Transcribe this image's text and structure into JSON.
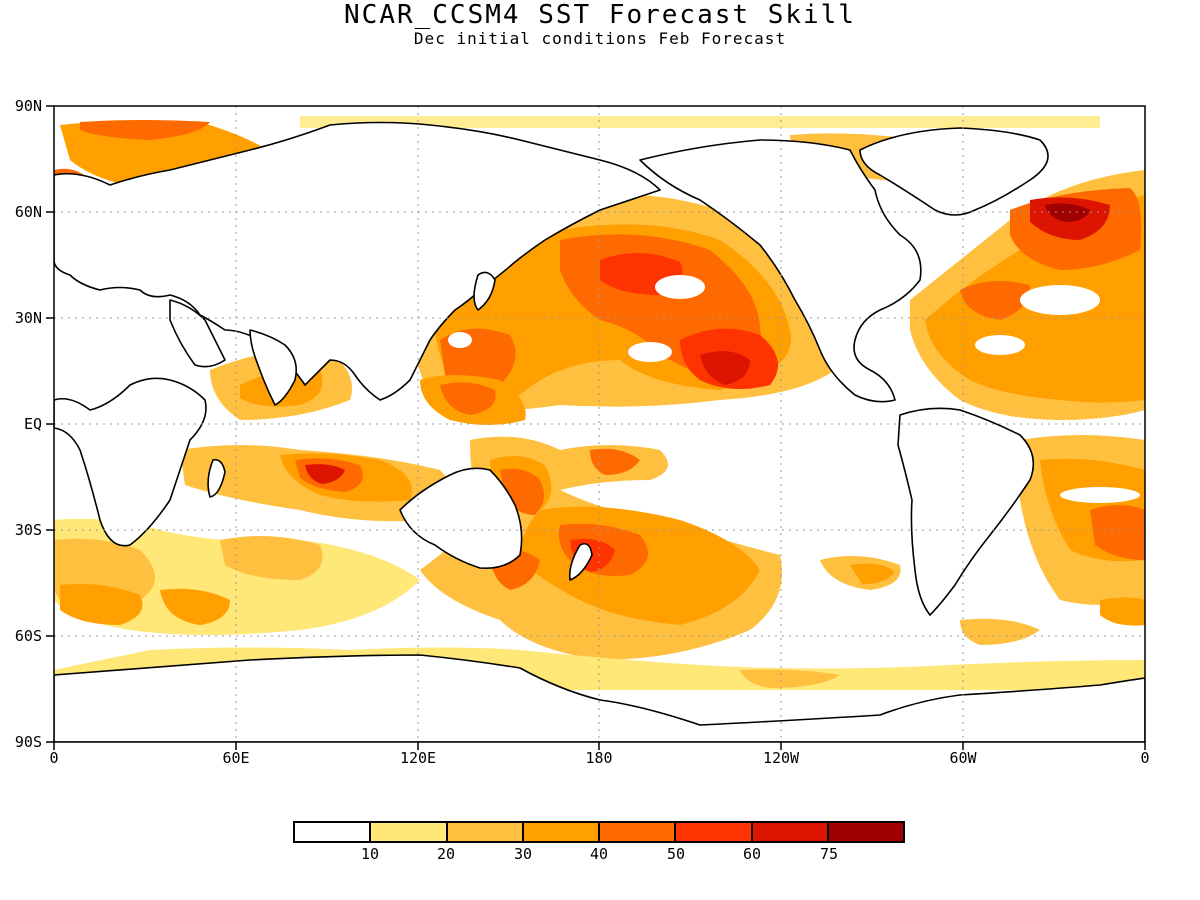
{
  "title": "NCAR_CCSM4 SST Forecast Skill",
  "subtitle": "Dec initial conditions  Feb Forecast",
  "lat_labels": [
    "90N",
    "60N",
    "30N",
    "EQ",
    "30S",
    "60S",
    "90S"
  ],
  "lon_labels": [
    "0",
    "60E",
    "120E",
    "180",
    "120W",
    "60W",
    "0"
  ],
  "colorbar": {
    "colors": [
      "#ffffff",
      "#ffe778",
      "#ffc040",
      "#ffa000",
      "#ff6a00",
      "#ff3300",
      "#dd1500",
      "#a00000"
    ],
    "labels": [
      "10",
      "20",
      "30",
      "40",
      "50",
      "60",
      "75"
    ]
  },
  "map_colors": {
    "land_outline": "#000000",
    "grid": "#999999"
  }
}
